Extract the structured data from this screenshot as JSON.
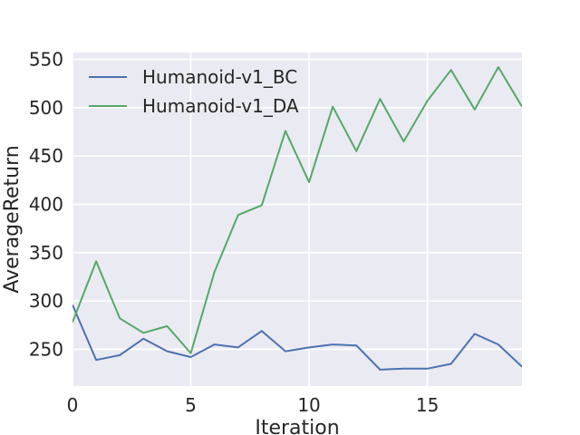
{
  "chart_data": {
    "type": "line",
    "xlabel": "Iteration",
    "ylabel": "AverageReturn",
    "xlim": [
      0,
      19
    ],
    "ylim": [
      212,
      557
    ],
    "xticks": [
      0,
      5,
      10,
      15
    ],
    "yticks": [
      250,
      300,
      350,
      400,
      450,
      500,
      550
    ],
    "grid": true,
    "legend_position": "top-left",
    "x": [
      0,
      1,
      2,
      3,
      4,
      5,
      6,
      7,
      8,
      9,
      10,
      11,
      12,
      13,
      14,
      15,
      16,
      17,
      18,
      19
    ],
    "series": [
      {
        "name": "Humanoid-v1_BC",
        "color": "#4c72b0",
        "values": [
          296,
          239,
          244,
          261,
          248,
          242,
          255,
          252,
          269,
          248,
          252,
          255,
          254,
          229,
          230,
          230,
          235,
          266,
          255,
          232
        ]
      },
      {
        "name": "Humanoid-v1_DA",
        "color": "#55a868",
        "values": [
          278,
          341,
          282,
          267,
          274,
          246,
          330,
          389,
          399,
          476,
          423,
          501,
          455,
          509,
          465,
          507,
          539,
          498,
          542,
          501
        ]
      }
    ]
  },
  "colors": {
    "plot_background": "#eaeaf2",
    "grid": "#ffffff",
    "text": "#262626"
  }
}
